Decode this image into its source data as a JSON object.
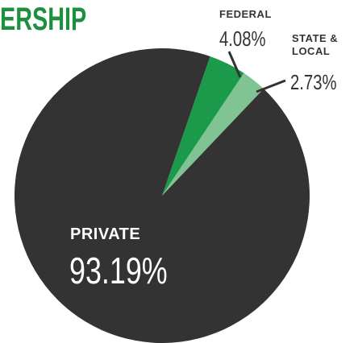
{
  "chart_data": {
    "type": "pie",
    "title": "ERSHIP",
    "categories": [
      "FEDERAL",
      "STATE & LOCAL",
      "PRIVATE"
    ],
    "values": [
      4.08,
      2.73,
      93.19
    ],
    "value_labels": [
      "4.08%",
      "2.73%",
      "93.19%"
    ],
    "colors": [
      "#1a9a4a",
      "#7fc492",
      "#333333"
    ]
  }
}
